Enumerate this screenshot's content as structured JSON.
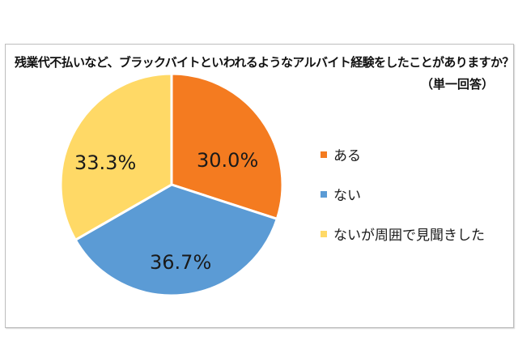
{
  "chart_data": {
    "type": "pie",
    "title": "残業代不払いなど、ブラックバイトといわれるようなアルバイト経験をしたことがありますか？",
    "subtitle": "（単一回答）",
    "categories": [
      "ある",
      "ない",
      "ないが周囲で見聞きした"
    ],
    "values": [
      30.0,
      36.7,
      33.3
    ],
    "labels": [
      "30.0%",
      "36.7%",
      "33.3%"
    ],
    "colors": [
      "#F47B20",
      "#5B9BD5",
      "#FFD966"
    ],
    "start_angle_deg": 0,
    "direction": "clockwise",
    "legend_position": "right"
  },
  "chart": {
    "title": "残業代不払いなど、ブラックバイトといわれるようなアルバイト経験をしたことがありますか？",
    "subtitle": "（単一回答）",
    "slice_labels": [
      "30.0%",
      "36.7%",
      "33.3%"
    ],
    "legend": [
      {
        "label": "ある",
        "color": "#F47B20"
      },
      {
        "label": "ない",
        "color": "#5B9BD5"
      },
      {
        "label": "ないが周囲で見聞きした",
        "color": "#FFD966"
      }
    ]
  }
}
